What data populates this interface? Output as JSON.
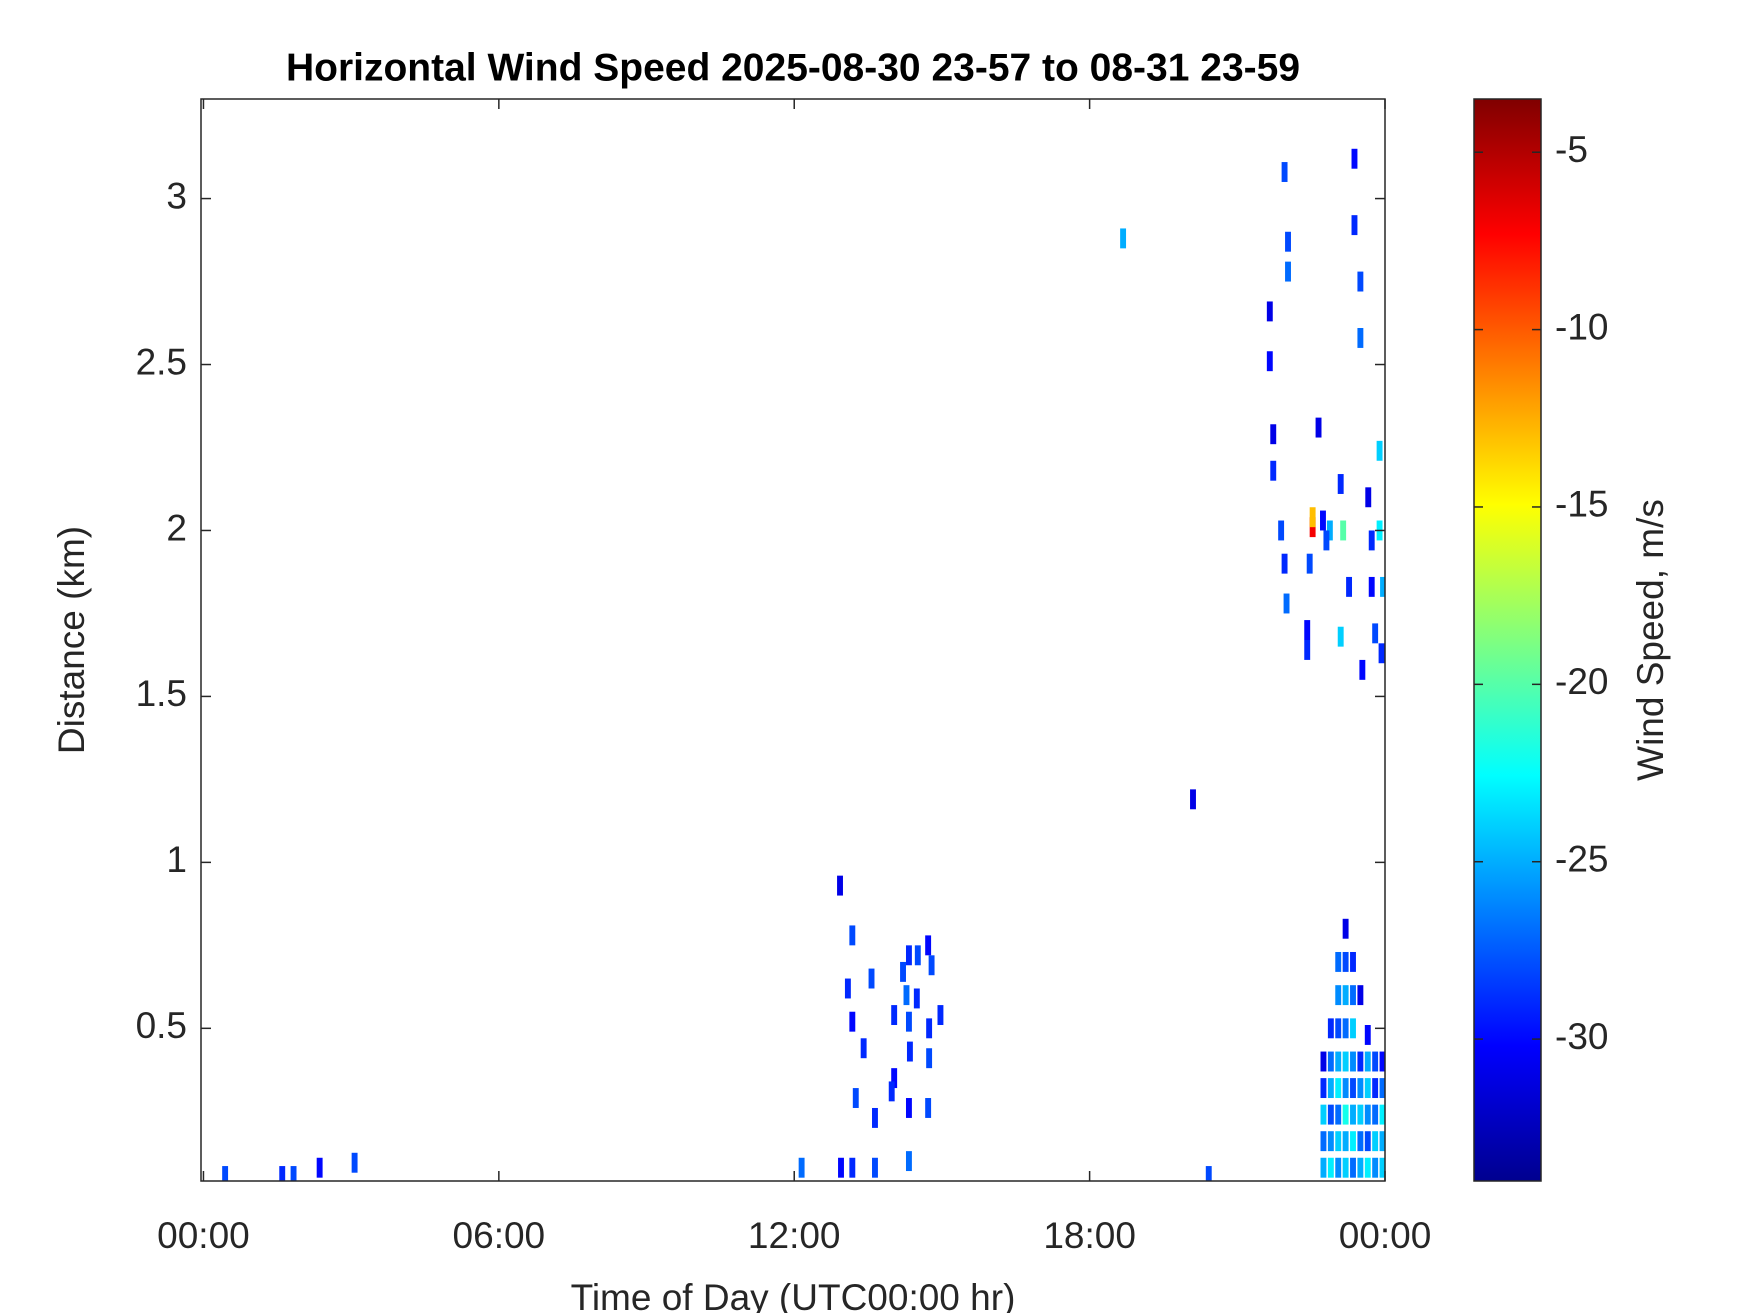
{
  "chart_data": {
    "type": "heatmap",
    "title": "Horizontal Wind Speed 2025-08-30 23-57 to 08-31 23-59",
    "x_label": "Time of Day (UTC00:00 hr)",
    "y_label": "Distance (km)",
    "colorbar_label": "Wind Speed, m/s",
    "xlim": [
      -0.05,
      24
    ],
    "xticks": [
      {
        "value": 0,
        "label": "00:00"
      },
      {
        "value": 6,
        "label": "06:00"
      },
      {
        "value": 12,
        "label": "12:00"
      },
      {
        "value": 18,
        "label": "18:00"
      },
      {
        "value": 24,
        "label": "00:00"
      }
    ],
    "ylim": [
      0.04,
      3.3
    ],
    "yticks": [
      0.5,
      1,
      1.5,
      2,
      2.5,
      3
    ],
    "clim": [
      -34,
      -3.5
    ],
    "cticks": [
      -30,
      -25,
      -20,
      -15,
      -10,
      -5
    ],
    "colormap": {
      "colors": [
        "#00008f",
        "#0000ff",
        "#00ffff",
        "#ffff00",
        "#ff0000",
        "#800000"
      ],
      "positions": [
        0,
        0.125,
        0.375,
        0.625,
        0.875,
        1
      ]
    },
    "cells": {
      "x": [
        0.44,
        1.6,
        1.83,
        2.36,
        3.07,
        12.15,
        12.95,
        13.18,
        13.64,
        14.33,
        20.42,
        12.93,
        13.18,
        13.09,
        13.18,
        13.41,
        13.25,
        13.64,
        13.57,
        14.03,
        14.03,
        13.98,
        14.21,
        14.33,
        14.28,
        14.33,
        14.35,
        14.33,
        14.51,
        14.49,
        14.72,
        14.79,
        14.74,
        14.74,
        14.97,
        14.72,
        18.68,
        20.1,
        21.96,
        22.03,
        22.03,
        21.66,
        21.66,
        21.73,
        21.73,
        21.89,
        21.96,
        22.0,
        22.65,
        22.42,
        22.42,
        22.53,
        22.53,
        22.74,
        22.88,
        22.47,
        22.81,
        23.15,
        23.1,
        23.27,
        23.38,
        23.38,
        23.5,
        23.5,
        23.66,
        23.73,
        23.73,
        23.8,
        23.89,
        23.89,
        23.96,
        23.93,
        23.54,
        23.1,
        22.75,
        22.75,
        22.75,
        22.75,
        22.75,
        22.9,
        22.9,
        22.9,
        22.9,
        22.9,
        22.9,
        23.05,
        23.05,
        23.05,
        23.05,
        23.05,
        23.05,
        23.05,
        23.05,
        23.2,
        23.2,
        23.2,
        23.2,
        23.2,
        23.2,
        23.2,
        23.2,
        23.2,
        23.35,
        23.35,
        23.35,
        23.35,
        23.35,
        23.35,
        23.35,
        23.35,
        23.5,
        23.5,
        23.5,
        23.5,
        23.5,
        23.5,
        23.65,
        23.65,
        23.65,
        23.65,
        23.65,
        23.65,
        23.8,
        23.8,
        23.8,
        23.8,
        23.8,
        23.95,
        23.95,
        23.95,
        23.95,
        23.95
      ],
      "y": [
        0.055,
        0.055,
        0.055,
        0.08,
        0.095,
        0.08,
        0.08,
        0.08,
        0.08,
        0.1,
        0.055,
        0.93,
        0.78,
        0.62,
        0.52,
        0.44,
        0.29,
        0.23,
        0.65,
        0.54,
        0.35,
        0.31,
        0.67,
        0.72,
        0.6,
        0.52,
        0.43,
        0.26,
        0.72,
        0.59,
        0.75,
        0.69,
        0.5,
        0.41,
        0.54,
        0.26,
        2.88,
        1.19,
        3.08,
        2.87,
        2.78,
        2.66,
        2.51,
        2.29,
        2.18,
        2.0,
        1.9,
        1.78,
        2.31,
        1.7,
        1.64,
        2.01,
        2.04,
        2.03,
        2.0,
        1.9,
        1.97,
        2.0,
        2.14,
        1.83,
        3.12,
        2.92,
        2.75,
        2.58,
        2.1,
        1.97,
        1.83,
        1.69,
        2.24,
        2.0,
        1.83,
        1.63,
        1.58,
        1.68,
        0.08,
        0.16,
        0.24,
        0.32,
        0.4,
        0.08,
        0.16,
        0.24,
        0.32,
        0.4,
        0.5,
        0.08,
        0.16,
        0.24,
        0.32,
        0.4,
        0.5,
        0.6,
        0.7,
        0.08,
        0.16,
        0.24,
        0.32,
        0.4,
        0.5,
        0.6,
        0.7,
        0.8,
        0.08,
        0.16,
        0.24,
        0.32,
        0.4,
        0.5,
        0.6,
        0.7,
        0.08,
        0.16,
        0.24,
        0.32,
        0.4,
        0.6,
        0.08,
        0.16,
        0.24,
        0.32,
        0.4,
        0.48,
        0.08,
        0.16,
        0.24,
        0.32,
        0.4,
        0.08,
        0.16,
        0.24,
        0.32,
        0.4
      ],
      "values": [
        -28,
        -29,
        -28,
        -30,
        -28,
        -27,
        -30,
        -29,
        -28,
        -27,
        -28,
        -31,
        -28,
        -29,
        -30,
        -29,
        -28,
        -29,
        -28,
        -29,
        -30,
        -29,
        -28,
        -29,
        -27,
        -28,
        -29,
        -30,
        -28,
        -29,
        -30,
        -28,
        -29,
        -28,
        -29,
        -28,
        -25,
        -31,
        -28,
        -28,
        -27,
        -31,
        -30,
        -31,
        -29,
        -28,
        -29,
        -27,
        -31,
        -30,
        -29,
        -7,
        -13,
        -30,
        -25,
        -28,
        -28,
        -20,
        -29,
        -29,
        -30,
        -29,
        -28,
        -27,
        -31,
        -29,
        -30,
        -28,
        -24,
        -23,
        -25,
        -29,
        -30,
        -24,
        -25,
        -27,
        -24,
        -29,
        -31,
        -23,
        -26,
        -28,
        -25,
        -27,
        -29,
        -26,
        -24,
        -27,
        -23,
        -25,
        -28,
        -26,
        -27,
        -24,
        -25,
        -22,
        -26,
        -24,
        -27,
        -25,
        -28,
        -31,
        -27,
        -23,
        -25,
        -28,
        -26,
        -24,
        -27,
        -29,
        -25,
        -27,
        -24,
        -26,
        -29,
        -31,
        -23,
        -28,
        -26,
        -24,
        -25,
        -30,
        -26,
        -24,
        -27,
        -29,
        -28,
        -24,
        -25,
        -23,
        -27,
        -30
      ]
    }
  }
}
